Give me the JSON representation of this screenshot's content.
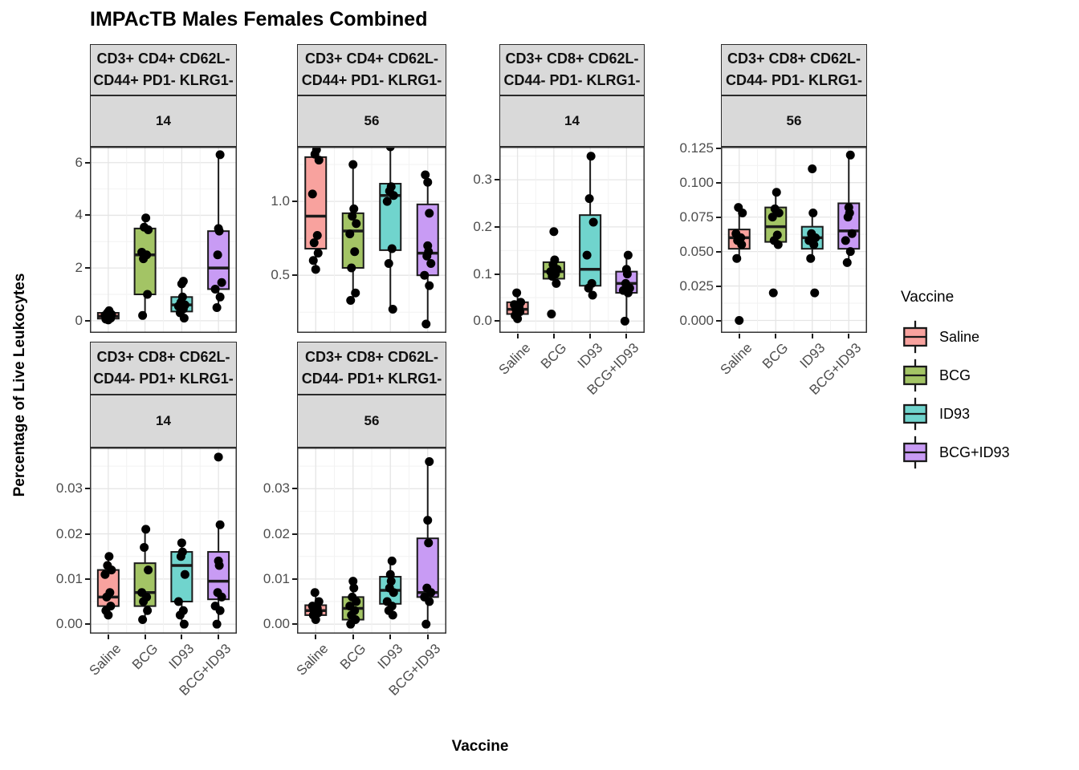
{
  "title": "IMPAcTB Males Females Combined",
  "axes": {
    "y_title": "Percentage of Live Leukocytes",
    "x_title": "Vaccine"
  },
  "legend": {
    "title": "Vaccine",
    "entries": [
      {
        "label": "Saline",
        "color": "#F8A29E"
      },
      {
        "label": "BCG",
        "color": "#A3C465"
      },
      {
        "label": "ID93",
        "color": "#70D4CD"
      },
      {
        "label": "BCG+ID93",
        "color": "#C89BF4"
      }
    ]
  },
  "chart_data": {
    "type": "boxplot",
    "facet_grid": "2 rows x 4 cols (6 facets), free y scales",
    "categories": [
      "Saline",
      "BCG",
      "ID93",
      "BCG+ID93"
    ],
    "group_colors": {
      "Saline": "#F8A29E",
      "BCG": "#A3C465",
      "ID93": "#70D4CD",
      "BCG+ID93": "#C89BF4"
    },
    "facets": [
      {
        "grid": {
          "row": 0,
          "col": 0
        },
        "strip_lines": [
          "CD3+ CD4+ CD62L-",
          "CD44+ PD1- KLRG1-"
        ],
        "day": "14",
        "y_ticks": [
          {
            "label": "0",
            "value": 0
          },
          {
            "label": "2",
            "value": 2
          },
          {
            "label": "4",
            "value": 4
          },
          {
            "label": "6",
            "value": 6
          }
        ],
        "y_domain": [
          -0.46,
          6.6
        ],
        "show_x_axis": false,
        "groups": [
          {
            "vaccine": "Saline",
            "box": {
              "lo": 0.02,
              "q1": 0.08,
              "med": 0.17,
              "q3": 0.3,
              "hi": 0.42
            },
            "points": [
              0.03,
              0.06,
              0.1,
              0.13,
              0.17,
              0.2,
              0.24,
              0.3,
              0.38
            ]
          },
          {
            "vaccine": "BCG",
            "box": {
              "lo": 0.2,
              "q1": 1.0,
              "med": 2.5,
              "q3": 3.5,
              "hi": 3.9
            },
            "points": [
              0.2,
              1.0,
              2.35,
              2.5,
              2.6,
              3.45,
              3.55,
              3.9
            ]
          },
          {
            "vaccine": "ID93",
            "box": {
              "lo": 0.1,
              "q1": 0.35,
              "med": 0.6,
              "q3": 0.9,
              "hi": 1.5
            },
            "points": [
              0.1,
              0.3,
              0.45,
              0.55,
              0.6,
              0.7,
              0.9,
              1.4,
              1.5
            ]
          },
          {
            "vaccine": "BCG+ID93",
            "box": {
              "lo": 0.5,
              "q1": 1.2,
              "med": 2.0,
              "q3": 3.4,
              "hi": 6.3
            },
            "points": [
              0.5,
              0.9,
              1.2,
              1.45,
              2.5,
              3.4,
              3.5,
              6.3
            ]
          }
        ]
      },
      {
        "grid": {
          "row": 0,
          "col": 1
        },
        "strip_lines": [
          "CD3+ CD4+ CD62L-",
          "CD44+ PD1- KLRG1-"
        ],
        "day": "56",
        "y_ticks": [
          {
            "label": "0.5",
            "value": 0.5
          },
          {
            "label": "1.0",
            "value": 1.0
          }
        ],
        "y_domain": [
          0.11,
          1.37
        ],
        "show_x_axis": false,
        "groups": [
          {
            "vaccine": "Saline",
            "box": {
              "lo": 0.54,
              "q1": 0.68,
              "med": 0.9,
              "q3": 1.3,
              "hi": 1.35
            },
            "points": [
              0.54,
              0.6,
              0.65,
              0.72,
              0.77,
              1.05,
              1.28,
              1.32,
              1.35
            ]
          },
          {
            "vaccine": "BCG",
            "box": {
              "lo": 0.33,
              "q1": 0.55,
              "med": 0.8,
              "q3": 0.92,
              "hi": 1.25
            },
            "points": [
              0.33,
              0.38,
              0.55,
              0.66,
              0.78,
              0.85,
              0.9,
              0.95,
              1.25
            ]
          },
          {
            "vaccine": "ID93",
            "box": {
              "lo": 0.27,
              "q1": 0.67,
              "med": 1.04,
              "q3": 1.12,
              "hi": 1.37
            },
            "points": [
              0.27,
              0.58,
              0.68,
              1.0,
              1.04,
              1.07,
              1.1,
              1.37
            ]
          },
          {
            "vaccine": "BCG+ID93",
            "box": {
              "lo": 0.17,
              "q1": 0.5,
              "med": 0.65,
              "q3": 0.98,
              "hi": 1.2
            },
            "points": [
              0.17,
              0.43,
              0.5,
              0.58,
              0.63,
              0.66,
              0.7,
              0.92,
              1.13,
              1.18
            ]
          }
        ]
      },
      {
        "grid": {
          "row": 0,
          "col": 2
        },
        "strip_lines": [
          "CD3+ CD8+ CD62L-",
          "CD44- PD1- KLRG1-"
        ],
        "day": "14",
        "y_ticks": [
          {
            "label": "0.0",
            "value": 0.0
          },
          {
            "label": "0.1",
            "value": 0.1
          },
          {
            "label": "0.2",
            "value": 0.2
          },
          {
            "label": "0.3",
            "value": 0.3
          }
        ],
        "y_domain": [
          -0.025,
          0.37
        ],
        "show_x_axis": true,
        "groups": [
          {
            "vaccine": "Saline",
            "box": {
              "lo": 0.005,
              "q1": 0.015,
              "med": 0.025,
              "q3": 0.04,
              "hi": 0.06
            },
            "points": [
              0.005,
              0.012,
              0.02,
              0.025,
              0.03,
              0.035,
              0.04,
              0.06
            ]
          },
          {
            "vaccine": "BCG",
            "box": {
              "lo": 0.075,
              "q1": 0.09,
              "med": 0.105,
              "q3": 0.125,
              "hi": 0.135
            },
            "points": [
              0.015,
              0.08,
              0.095,
              0.1,
              0.105,
              0.11,
              0.12,
              0.13,
              0.19
            ]
          },
          {
            "vaccine": "ID93",
            "box": {
              "lo": 0.055,
              "q1": 0.075,
              "med": 0.11,
              "q3": 0.225,
              "hi": 0.35
            },
            "points": [
              0.055,
              0.07,
              0.08,
              0.14,
              0.21,
              0.26,
              0.35
            ]
          },
          {
            "vaccine": "BCG+ID93",
            "box": {
              "lo": 0.0,
              "q1": 0.06,
              "med": 0.08,
              "q3": 0.105,
              "hi": 0.14
            },
            "points": [
              0.0,
              0.06,
              0.065,
              0.07,
              0.08,
              0.1,
              0.11,
              0.14
            ]
          }
        ]
      },
      {
        "grid": {
          "row": 0,
          "col": 3
        },
        "strip_lines": [
          "CD3+ CD8+ CD62L-",
          "CD44- PD1- KLRG1-"
        ],
        "day": "56",
        "y_ticks": [
          {
            "label": "0.000",
            "value": 0.0
          },
          {
            "label": "0.025",
            "value": 0.025
          },
          {
            "label": "0.050",
            "value": 0.05
          },
          {
            "label": "0.075",
            "value": 0.075
          },
          {
            "label": "0.100",
            "value": 0.1
          },
          {
            "label": "0.125",
            "value": 0.125
          }
        ],
        "y_domain": [
          -0.009,
          0.126
        ],
        "show_x_axis": true,
        "groups": [
          {
            "vaccine": "Saline",
            "box": {
              "lo": 0.045,
              "q1": 0.052,
              "med": 0.06,
              "q3": 0.066,
              "hi": 0.082
            },
            "points": [
              0.0,
              0.045,
              0.055,
              0.058,
              0.06,
              0.063,
              0.078,
              0.082
            ]
          },
          {
            "vaccine": "BCG",
            "box": {
              "lo": 0.055,
              "q1": 0.057,
              "med": 0.068,
              "q3": 0.082,
              "hi": 0.093
            },
            "points": [
              0.02,
              0.055,
              0.058,
              0.062,
              0.075,
              0.078,
              0.081,
              0.093
            ]
          },
          {
            "vaccine": "ID93",
            "box": {
              "lo": 0.045,
              "q1": 0.052,
              "med": 0.06,
              "q3": 0.068,
              "hi": 0.078
            },
            "points": [
              0.02,
              0.045,
              0.055,
              0.058,
              0.06,
              0.063,
              0.078,
              0.11
            ]
          },
          {
            "vaccine": "BCG+ID93",
            "box": {
              "lo": 0.042,
              "q1": 0.052,
              "med": 0.065,
              "q3": 0.085,
              "hi": 0.12
            },
            "points": [
              0.042,
              0.05,
              0.058,
              0.063,
              0.075,
              0.078,
              0.082,
              0.12
            ]
          }
        ]
      },
      {
        "grid": {
          "row": 1,
          "col": 0
        },
        "strip_lines": [
          "CD3+ CD8+ CD62L-",
          "CD44- PD1+ KLRG1-"
        ],
        "day": "14",
        "y_ticks": [
          {
            "label": "0.00",
            "value": 0.0
          },
          {
            "label": "0.01",
            "value": 0.01
          },
          {
            "label": "0.02",
            "value": 0.02
          },
          {
            "label": "0.03",
            "value": 0.03
          }
        ],
        "y_domain": [
          -0.0021,
          0.0391
        ],
        "show_x_axis": true,
        "groups": [
          {
            "vaccine": "Saline",
            "box": {
              "lo": 0.002,
              "q1": 0.004,
              "med": 0.006,
              "q3": 0.012,
              "hi": 0.015
            },
            "points": [
              0.002,
              0.003,
              0.004,
              0.006,
              0.007,
              0.011,
              0.012,
              0.013,
              0.015
            ]
          },
          {
            "vaccine": "BCG",
            "box": {
              "lo": 0.001,
              "q1": 0.004,
              "med": 0.007,
              "q3": 0.0135,
              "hi": 0.021
            },
            "points": [
              0.001,
              0.003,
              0.005,
              0.006,
              0.007,
              0.012,
              0.017,
              0.021
            ]
          },
          {
            "vaccine": "ID93",
            "box": {
              "lo": 0.0,
              "q1": 0.005,
              "med": 0.013,
              "q3": 0.016,
              "hi": 0.018
            },
            "points": [
              0.0,
              0.002,
              0.003,
              0.005,
              0.011,
              0.015,
              0.016,
              0.018
            ]
          },
          {
            "vaccine": "BCG+ID93",
            "box": {
              "lo": 0.0,
              "q1": 0.0055,
              "med": 0.0095,
              "q3": 0.016,
              "hi": 0.022
            },
            "points": [
              0.0,
              0.003,
              0.004,
              0.006,
              0.007,
              0.013,
              0.014,
              0.022,
              0.037
            ]
          }
        ]
      },
      {
        "grid": {
          "row": 1,
          "col": 1
        },
        "strip_lines": [
          "CD3+ CD8+ CD62L-",
          "CD44- PD1+ KLRG1-"
        ],
        "day": "56",
        "y_ticks": [
          {
            "label": "0.00",
            "value": 0.0
          },
          {
            "label": "0.01",
            "value": 0.01
          },
          {
            "label": "0.02",
            "value": 0.02
          },
          {
            "label": "0.03",
            "value": 0.03
          }
        ],
        "y_domain": [
          -0.0021,
          0.0391
        ],
        "show_x_axis": true,
        "groups": [
          {
            "vaccine": "Saline",
            "box": {
              "lo": 0.001,
              "q1": 0.002,
              "med": 0.003,
              "q3": 0.0042,
              "hi": 0.007
            },
            "points": [
              0.001,
              0.002,
              0.0025,
              0.003,
              0.0035,
              0.004,
              0.005,
              0.007
            ]
          },
          {
            "vaccine": "BCG",
            "box": {
              "lo": 0.0,
              "q1": 0.001,
              "med": 0.0035,
              "q3": 0.006,
              "hi": 0.0095
            },
            "points": [
              0.0,
              0.001,
              0.002,
              0.003,
              0.004,
              0.005,
              0.006,
              0.008,
              0.0095
            ]
          },
          {
            "vaccine": "ID93",
            "box": {
              "lo": 0.002,
              "q1": 0.0045,
              "med": 0.0075,
              "q3": 0.0105,
              "hi": 0.014
            },
            "points": [
              0.002,
              0.003,
              0.004,
              0.005,
              0.007,
              0.008,
              0.0095,
              0.011,
              0.014
            ]
          },
          {
            "vaccine": "BCG+ID93",
            "box": {
              "lo": 0.0,
              "q1": 0.006,
              "med": 0.007,
              "q3": 0.019,
              "hi": 0.036
            },
            "points": [
              0.0,
              0.005,
              0.006,
              0.007,
              0.008,
              0.018,
              0.023,
              0.036
            ]
          }
        ]
      }
    ]
  }
}
